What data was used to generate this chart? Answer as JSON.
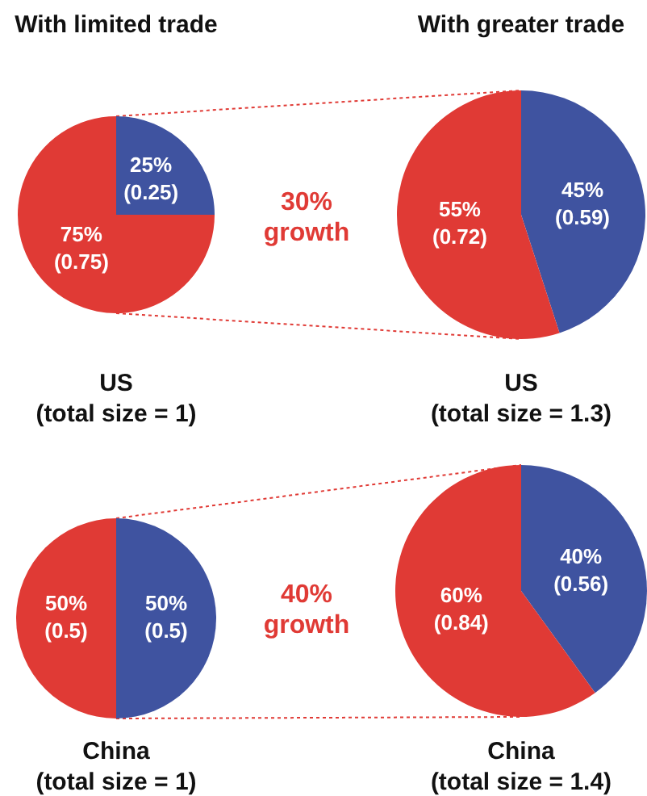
{
  "chart_data": [
    {
      "type": "pie",
      "title": "With limited trade",
      "xlabel": "US\n(total size = 1)",
      "categories": [
        null,
        null
      ],
      "values": [
        25,
        75
      ],
      "colors": [
        "#3f53a0",
        "#e03a35"
      ],
      "value_labels": [
        "25%\n(0.25)",
        "75%\n(0.75)"
      ],
      "annotations": [
        "30%\ngrowth"
      ]
    },
    {
      "type": "pie",
      "title": "With greater trade",
      "xlabel": "US\n(total size = 1.3)",
      "categories": [
        null,
        null
      ],
      "values": [
        45,
        55
      ],
      "colors": [
        "#3f53a0",
        "#e03a35"
      ],
      "value_labels": [
        "45%\n(0.59)",
        "55%\n(0.72)"
      ]
    },
    {
      "type": "pie",
      "xlabel": "China\n(total size = 1)",
      "categories": [
        null,
        null
      ],
      "values": [
        50,
        50
      ],
      "colors": [
        "#3f53a0",
        "#e03a35"
      ],
      "value_labels": [
        "50%\n(0.5)",
        "50%\n(0.5)"
      ],
      "annotations": [
        "40%\ngrowth"
      ]
    },
    {
      "type": "pie",
      "xlabel": "China\n(total size = 1.4)",
      "categories": [
        null,
        null
      ],
      "values": [
        40,
        60
      ],
      "colors": [
        "#3f53a0",
        "#e03a35"
      ],
      "value_labels": [
        "40%\n(0.56)",
        "60%\n(0.84)"
      ]
    }
  ]
}
